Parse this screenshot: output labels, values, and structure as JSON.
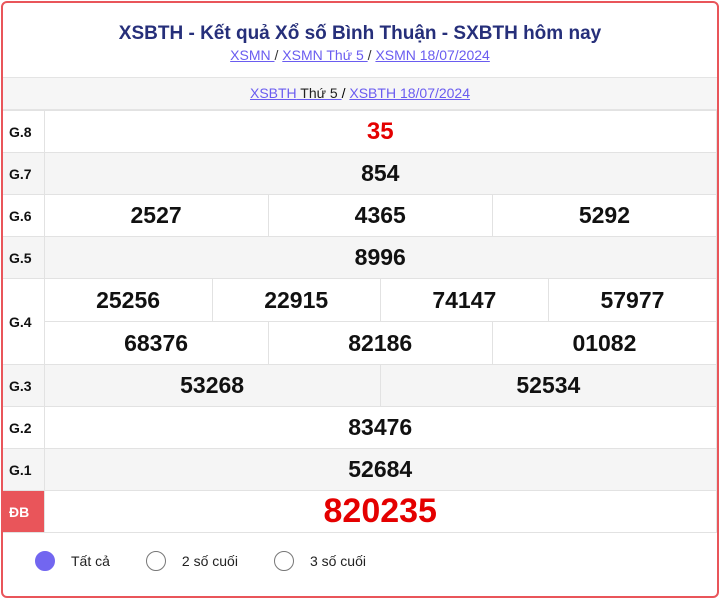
{
  "header": {
    "title": "XSBTH - Kết quả Xổ số Bình Thuận - SXBTH hôm nay",
    "links": [
      "XSMN ",
      "XSMN Thứ 5 ",
      "XSMN 18/07/2024"
    ],
    "sep": "/"
  },
  "sub": {
    "link1_prefix": "XSBTH",
    "link1_day": " Thứ 5 ",
    "link2": "XSBTH 18/07/2024"
  },
  "prizes": {
    "g8": {
      "label": "G.8",
      "values": [
        "35"
      ]
    },
    "g7": {
      "label": "G.7",
      "values": [
        "854"
      ]
    },
    "g6": {
      "label": "G.6",
      "values": [
        "2527",
        "4365",
        "5292"
      ]
    },
    "g5": {
      "label": "G.5",
      "values": [
        "8996"
      ]
    },
    "g4": {
      "label": "G.4",
      "values": [
        "25256",
        "22915",
        "74147",
        "57977",
        "68376",
        "82186",
        "01082"
      ]
    },
    "g3": {
      "label": "G.3",
      "values": [
        "53268",
        "52534"
      ]
    },
    "g2": {
      "label": "G.2",
      "values": [
        "83476"
      ]
    },
    "g1": {
      "label": "G.1",
      "values": [
        "52684"
      ]
    },
    "db": {
      "label": "ĐB",
      "values": [
        "820235"
      ]
    }
  },
  "filters": [
    {
      "label": "Tất cả",
      "selected": true
    },
    {
      "label": "2 số cuối",
      "selected": false
    },
    {
      "label": "3 số cuối",
      "selected": false
    }
  ],
  "colors": {
    "accent": "#e9555a",
    "link": "#6a5cf0",
    "title": "#262f7a",
    "highlight": "#e40000"
  }
}
